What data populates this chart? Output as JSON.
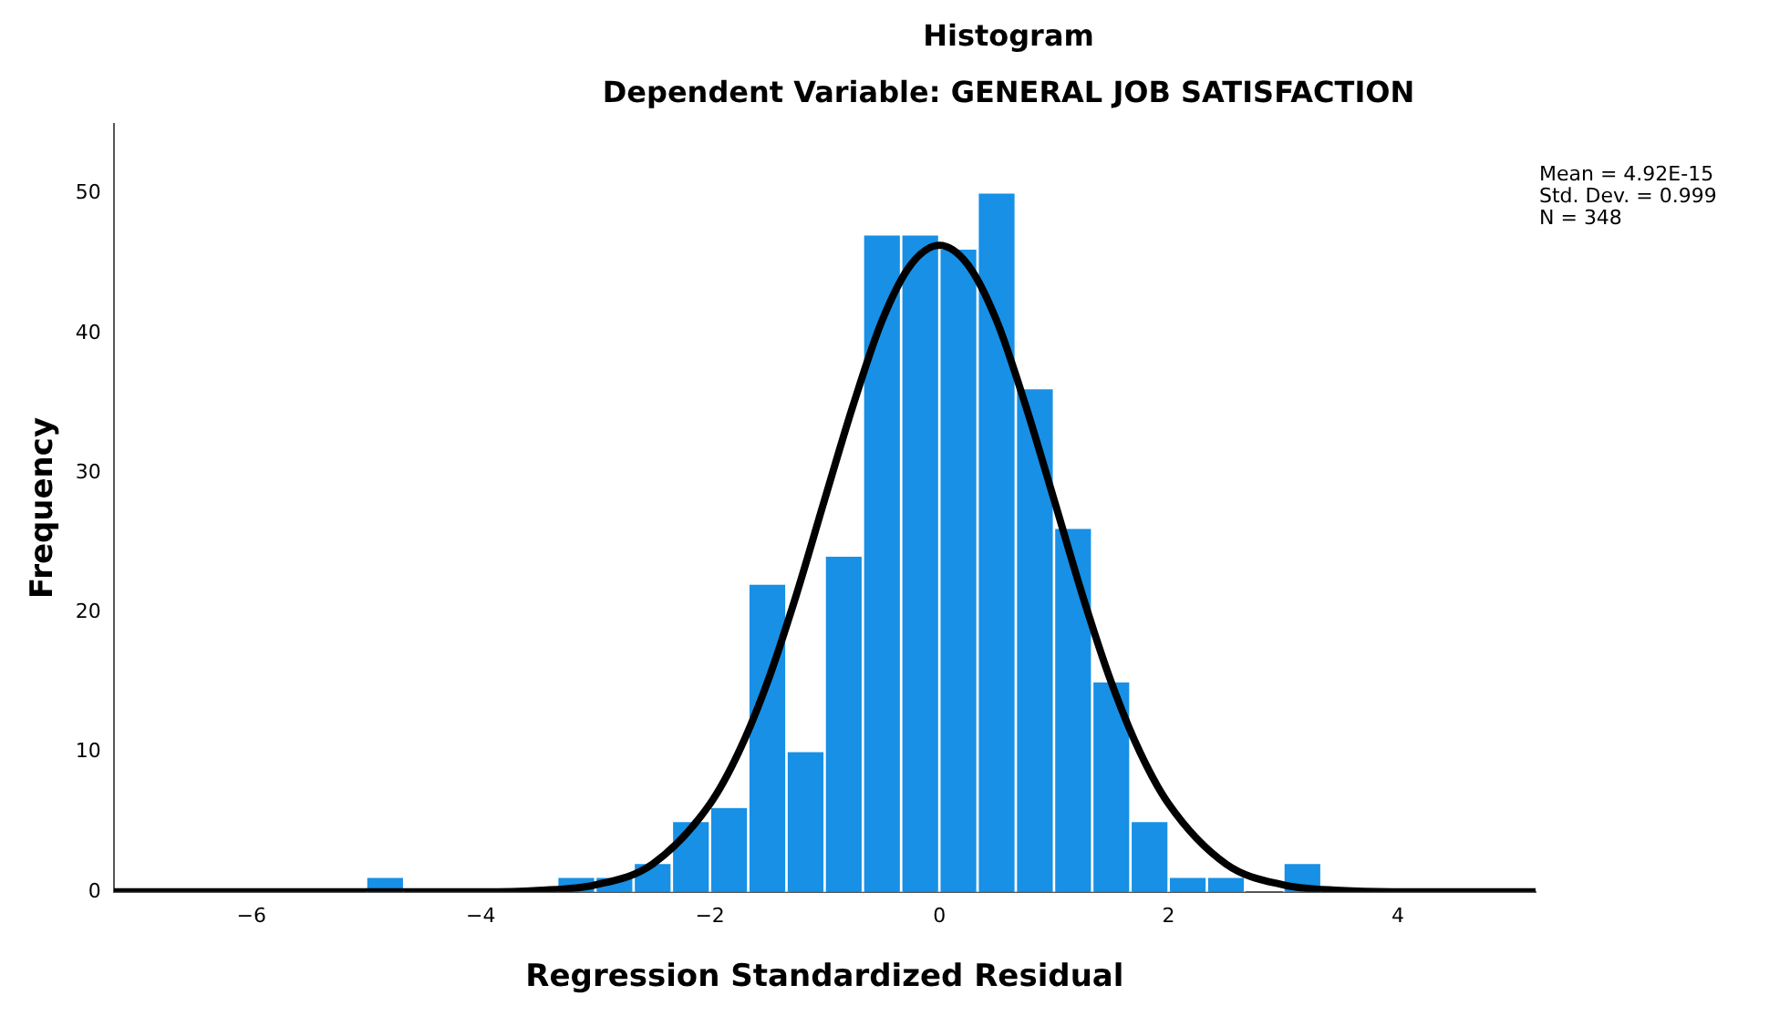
{
  "chart_data": {
    "type": "histogram",
    "title": "Histogram",
    "subtitle": "Dependent Variable: GENERAL JOB SATISFACTION",
    "xlabel": "Regression Standardized Residual",
    "ylabel": "Frequency",
    "annotations": [
      "Mean = 4.92E-15",
      "Std. Dev. = 0.999",
      "N = 348"
    ],
    "bins": [
      -5,
      -4.667,
      -4.333,
      -4,
      -3.667,
      -3.333,
      -3,
      -2.667,
      -2.333,
      -2,
      -1.667,
      -1.333,
      -1,
      -0.667,
      -0.333,
      0,
      0.333,
      0.667,
      1,
      1.333,
      1.667,
      2,
      2.333,
      2.667,
      3,
      3.333
    ],
    "values": [
      1,
      0,
      0,
      0,
      0,
      1,
      1,
      2,
      5,
      6,
      22,
      10,
      24,
      47,
      47,
      46,
      50,
      36,
      26,
      15,
      5,
      1,
      1,
      0,
      2
    ],
    "color": "#1790e6",
    "series": [
      {
        "type": "line",
        "color": "#000000",
        "marker": "none",
        "x": [
          -7.2,
          -4,
          -3.5,
          -3,
          -2.5,
          -2,
          -1.75,
          -1.5,
          -1.25,
          -1,
          -0.75,
          -0.5,
          -0.25,
          0,
          0.25,
          0.5,
          0.75,
          1,
          1.25,
          1.5,
          1.75,
          2,
          2.5,
          3,
          3.5,
          4,
          5.2
        ],
        "values": [
          0,
          0,
          0.1,
          0.5,
          2,
          6.3,
          10,
          15,
          21.2,
          28.1,
          34.9,
          40.9,
          44.9,
          46.3,
          44.9,
          40.9,
          34.9,
          28.1,
          21.2,
          15,
          10,
          6.3,
          2,
          0.5,
          0.1,
          0,
          0
        ]
      }
    ],
    "xlim": [
      -7.2,
      5.2
    ],
    "xticks": [
      -6,
      -4,
      -2,
      0,
      2,
      4
    ],
    "ylim": [
      0,
      55
    ],
    "yticks": [
      0,
      10,
      20,
      30,
      40,
      50
    ],
    "grid": false,
    "legend": false
  }
}
